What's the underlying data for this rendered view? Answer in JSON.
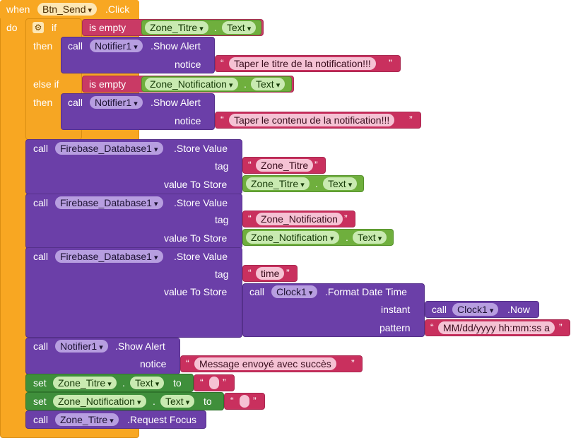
{
  "event": {
    "when": "when",
    "component": "Btn_Send",
    "event": ".Click",
    "do": "do"
  },
  "if_block": {
    "if": "if",
    "else_if": "else if",
    "then": "then",
    "then2": "then",
    "cond1": {
      "op": "is empty",
      "component": "Zone_Titre",
      "prop": "Text"
    },
    "alert1": {
      "call": "call",
      "component": "Notifier1",
      "method": ".Show Alert",
      "arg": "notice",
      "text": "Taper le titre de la notification!!!"
    },
    "cond2": {
      "op": "is empty",
      "component": "Zone_Notification",
      "prop": "Text"
    },
    "alert2": {
      "call": "call",
      "component": "Notifier1",
      "method": ".Show Alert",
      "arg": "notice",
      "text": "Taper le contenu de la notification!!!"
    }
  },
  "store1": {
    "call": "call",
    "component": "Firebase_Database1",
    "method": ".Store Value",
    "tag_label": "tag",
    "tag": "Zone_Titre",
    "value_label": "value To Store",
    "vcomp": "Zone_Titre",
    "vprop": "Text"
  },
  "store2": {
    "call": "call",
    "component": "Firebase_Database1",
    "method": ".Store Value",
    "tag_label": "tag",
    "tag": "Zone_Notification",
    "value_label": "value To Store",
    "vcomp": "Zone_Notification",
    "vprop": "Text"
  },
  "store3": {
    "call": "call",
    "component": "Firebase_Database1",
    "method": ".Store Value",
    "tag_label": "tag",
    "tag": "time",
    "value_label": "value To Store",
    "clock_call": "call",
    "clock": "Clock1",
    "clock_method": ".Format Date Time",
    "instant_label": "instant",
    "now_call": "call",
    "now_comp": "Clock1",
    "now_method": ".Now",
    "pattern_label": "pattern",
    "pattern": "MM/dd/yyyy hh:mm:ss a"
  },
  "alert3": {
    "call": "call",
    "component": "Notifier1",
    "method": ".Show Alert",
    "arg": "notice",
    "text": "Message envoyé avec succès"
  },
  "set1": {
    "set": "set",
    "component": "Zone_Titre",
    "prop": "Text",
    "to": "to"
  },
  "set2": {
    "set": "set",
    "component": "Zone_Notification",
    "prop": "Text",
    "to": "to"
  },
  "focus": {
    "call": "call",
    "component": "Zone_Titre",
    "method": ".Request Focus"
  },
  "glyphs": {
    "open_q": "“",
    "close_q": "”",
    "dot": ".",
    "gear": "⚙"
  },
  "colors": {
    "event": "#f8a722",
    "procedure": "#6b3fa8",
    "logic": "#c93a65",
    "text": "#c9305e",
    "component": "#6faf3d",
    "setter": "#3f8f3b"
  }
}
